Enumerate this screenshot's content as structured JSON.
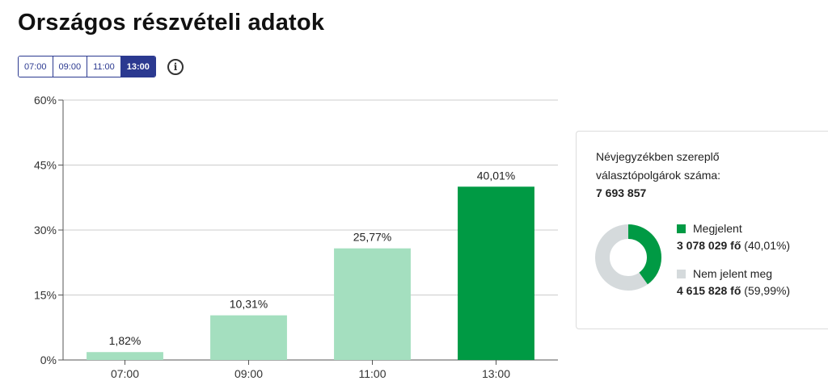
{
  "page": {
    "title": "Országos részvételi adatok"
  },
  "time_tabs": {
    "items": [
      {
        "label": "07:00",
        "active": false
      },
      {
        "label": "09:00",
        "active": false
      },
      {
        "label": "11:00",
        "active": false
      },
      {
        "label": "13:00",
        "active": true
      }
    ]
  },
  "info": {
    "icon": "info-icon",
    "glyph": "i"
  },
  "colors": {
    "accent": "#2b3990",
    "bar_light": "#a4dfbf",
    "bar_highlight": "#009a44",
    "donut_remaining": "#d5dadc",
    "grid": "#cccccc",
    "axis": "#555555"
  },
  "chart_data": {
    "type": "bar",
    "categories": [
      "07:00",
      "09:00",
      "11:00",
      "13:00"
    ],
    "values": [
      1.82,
      10.31,
      25.77,
      40.01
    ],
    "data_labels": [
      "1,82%",
      "10,31%",
      "25,77%",
      "40,01%"
    ],
    "highlight_index": 3,
    "ylim": [
      0,
      60
    ],
    "yticks": [
      0,
      15,
      30,
      45,
      60
    ],
    "ytick_labels": [
      "0%",
      "15%",
      "30%",
      "45%",
      "60%"
    ],
    "grid": true
  },
  "summary": {
    "label_line1": "Névjegyzékben szereplő",
    "label_line2": "választópolgárok száma:",
    "total": "7 693 857",
    "donut_fraction": 0.4001,
    "legend": [
      {
        "label": "Megjelent",
        "value": "3 078 029 fő",
        "percent": "(40,01%)",
        "color": "#009a44"
      },
      {
        "label": "Nem jelent meg",
        "value": "4 615 828 fő",
        "percent": "(59,99%)",
        "color": "#d5dadc"
      }
    ]
  }
}
